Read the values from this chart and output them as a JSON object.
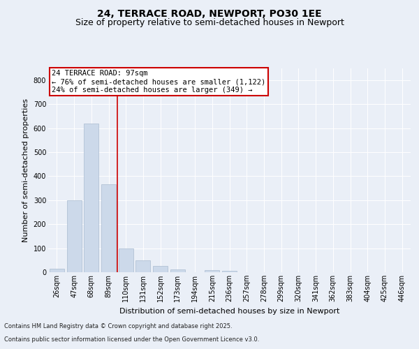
{
  "title": "24, TERRACE ROAD, NEWPORT, PO30 1EE",
  "subtitle": "Size of property relative to semi-detached houses in Newport",
  "xlabel": "Distribution of semi-detached houses by size in Newport",
  "ylabel": "Number of semi-detached properties",
  "categories": [
    "26sqm",
    "47sqm",
    "68sqm",
    "89sqm",
    "110sqm",
    "131sqm",
    "152sqm",
    "173sqm",
    "194sqm",
    "215sqm",
    "236sqm",
    "257sqm",
    "278sqm",
    "299sqm",
    "320sqm",
    "341sqm",
    "362sqm",
    "383sqm",
    "404sqm",
    "425sqm",
    "446sqm"
  ],
  "values": [
    15,
    300,
    620,
    365,
    100,
    50,
    25,
    12,
    0,
    8,
    5,
    0,
    0,
    0,
    0,
    0,
    0,
    0,
    0,
    0,
    0
  ],
  "bar_color": "#ccd9ea",
  "bar_edge_color": "#aabbd0",
  "vline_color": "#cc0000",
  "vline_label": "24 TERRACE ROAD: 97sqm",
  "annotation_line2": "← 76% of semi-detached houses are smaller (1,122)",
  "annotation_line3": "24% of semi-detached houses are larger (349) →",
  "ylim": [
    0,
    850
  ],
  "yticks": [
    0,
    100,
    200,
    300,
    400,
    500,
    600,
    700,
    800
  ],
  "bg_color": "#eaeff7",
  "plot_bg_color": "#eaeff7",
  "annotation_box_facecolor": "#ffffff",
  "annotation_box_edgecolor": "#cc0000",
  "footer1": "Contains HM Land Registry data © Crown copyright and database right 2025.",
  "footer2": "Contains public sector information licensed under the Open Government Licence v3.0.",
  "title_fontsize": 10,
  "subtitle_fontsize": 9,
  "tick_fontsize": 7,
  "ylabel_fontsize": 8,
  "xlabel_fontsize": 8,
  "annotation_fontsize": 7.5,
  "footer_fontsize": 6
}
